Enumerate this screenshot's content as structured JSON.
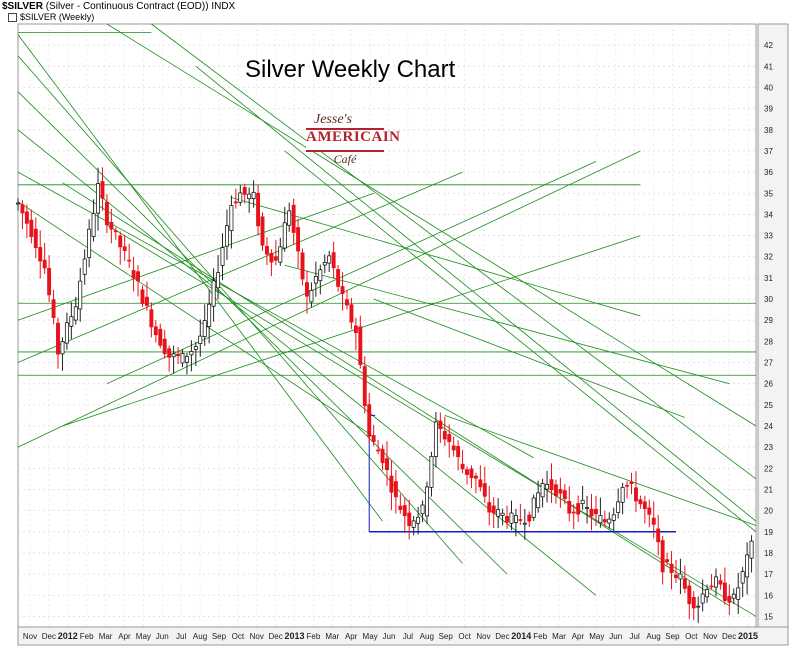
{
  "header": {
    "symbol": "$SILVER",
    "description": "(Silver - Continuous Contract (EOD))",
    "exchange": "INDX",
    "legend": "$SILVER (Weekly)"
  },
  "logo": {
    "script": "Jesse's",
    "main": "AMERICAIN",
    "sub": "Café"
  },
  "colors": {
    "up_candle_body": "#ffffff",
    "down_candle_body": "#e8121b",
    "up_candle_line": "#000000",
    "trendline": "#1a8c1a",
    "support_line": "#1020c8",
    "price_axis_bg": "#f3f3f3"
  },
  "chart_data": {
    "type": "candlestick",
    "title": "Silver Weekly Chart",
    "interval": "weekly",
    "ylim": [
      14.5,
      43
    ],
    "y_ticks": [
      15,
      16,
      17,
      18,
      19,
      20,
      21,
      22,
      23,
      24,
      25,
      26,
      27,
      28,
      29,
      30,
      31,
      32,
      33,
      34,
      35,
      36,
      37,
      38,
      39,
      40,
      41,
      42
    ],
    "x_tick_labels": [
      "Nov",
      "Dec",
      "2012",
      "Feb",
      "Mar",
      "Apr",
      "May",
      "Jun",
      "Jul",
      "Aug",
      "Sep",
      "Oct",
      "Nov",
      "Dec",
      "2013",
      "Feb",
      "Mar",
      "Apr",
      "May",
      "Jun",
      "Jul",
      "Aug",
      "Sep",
      "Oct",
      "Nov",
      "Dec",
      "2014",
      "Feb",
      "Mar",
      "Apr",
      "May",
      "Jun",
      "Jul",
      "Aug",
      "Sep",
      "Oct",
      "Nov",
      "Dec",
      "2015"
    ],
    "grid": true,
    "path_anchors": [
      [
        0,
        34.5
      ],
      [
        3,
        33.2
      ],
      [
        6,
        31.5
      ],
      [
        9,
        27.5
      ],
      [
        13,
        29.8
      ],
      [
        18,
        35.3
      ],
      [
        20,
        33.8
      ],
      [
        23,
        32.5
      ],
      [
        26,
        31.2
      ],
      [
        29,
        29.5
      ],
      [
        31,
        28.4
      ],
      [
        34,
        27.3
      ],
      [
        37,
        27.2
      ],
      [
        40,
        27.8
      ],
      [
        42,
        28.7
      ],
      [
        45,
        31.5
      ],
      [
        48,
        34.5
      ],
      [
        50,
        35.0
      ],
      [
        53,
        34.8
      ],
      [
        55,
        32.5
      ],
      [
        58,
        31.8
      ],
      [
        61,
        34.3
      ],
      [
        63,
        32.0
      ],
      [
        65,
        30.0
      ],
      [
        67,
        31.0
      ],
      [
        70,
        32.0
      ],
      [
        73,
        30.0
      ],
      [
        76,
        28.5
      ],
      [
        79,
        23.5
      ],
      [
        82,
        22.5
      ],
      [
        85,
        20.5
      ],
      [
        88,
        19.5
      ],
      [
        91,
        20.0
      ],
      [
        94,
        24.0
      ],
      [
        97,
        23.3
      ],
      [
        100,
        22.0
      ],
      [
        103,
        21.5
      ],
      [
        106,
        20.0
      ],
      [
        109,
        19.8
      ],
      [
        112,
        19.5
      ],
      [
        115,
        19.8
      ],
      [
        118,
        21.3
      ],
      [
        121,
        21.0
      ],
      [
        124,
        20.0
      ],
      [
        127,
        20.2
      ],
      [
        130,
        19.7
      ],
      [
        132,
        19.5
      ],
      [
        134,
        20.0
      ],
      [
        136,
        21.3
      ],
      [
        138,
        21.0
      ],
      [
        141,
        20.0
      ],
      [
        143,
        19.2
      ],
      [
        145,
        17.4
      ],
      [
        147,
        17.2
      ],
      [
        149,
        16.8
      ],
      [
        151,
        15.8
      ],
      [
        153,
        15.6
      ],
      [
        155,
        16.5
      ],
      [
        157,
        16.6
      ],
      [
        159,
        16.0
      ],
      [
        161,
        15.8
      ],
      [
        163,
        17.0
      ],
      [
        165,
        18.3
      ]
    ],
    "support_zone": {
      "top": 24.5,
      "level": 19.0,
      "from": "2013 Mar",
      "to": "2014 Aug"
    },
    "trendlines": [
      {
        "x0": 0,
        "y0": 42.5,
        "x1": 82,
        "y1": 19.5
      },
      {
        "x0": 0,
        "y0": 41.5,
        "x1": 100,
        "y1": 17.5
      },
      {
        "x0": 0,
        "y0": 39.8,
        "x1": 110,
        "y1": 17.0
      },
      {
        "x0": 0,
        "y0": 38.0,
        "x1": 130,
        "y1": 16.0
      },
      {
        "x0": 10,
        "y0": 35.5,
        "x1": 160,
        "y1": 15.5
      },
      {
        "x0": 20,
        "y0": 33.5,
        "x1": 166,
        "y1": 15.0
      },
      {
        "x0": 20,
        "y0": 43.0,
        "x1": 166,
        "y1": 24.0
      },
      {
        "x0": 30,
        "y0": 43.0,
        "x1": 166,
        "y1": 21.5
      },
      {
        "x0": 40,
        "y0": 41.0,
        "x1": 166,
        "y1": 19.5
      },
      {
        "x0": 60,
        "y0": 37.0,
        "x1": 166,
        "y1": 19.0
      },
      {
        "x0": 0,
        "y0": 36.0,
        "x1": 116,
        "y1": 22.5
      },
      {
        "x0": 0,
        "y0": 34.6,
        "x1": 80,
        "y1": 23.5
      },
      {
        "x0": 96,
        "y0": 24.5,
        "x1": 166,
        "y1": 19.3
      },
      {
        "x0": 80,
        "y0": 30.0,
        "x1": 150,
        "y1": 24.4
      },
      {
        "x0": 60,
        "y0": 31.6,
        "x1": 160,
        "y1": 26.0
      },
      {
        "x0": 48,
        "y0": 34.8,
        "x1": 140,
        "y1": 29.2
      },
      {
        "x0": 0,
        "y0": 23.0,
        "x1": 140,
        "y1": 37.0
      },
      {
        "x0": 10,
        "y0": 24.0,
        "x1": 140,
        "y1": 33.0
      },
      {
        "x0": 0,
        "y0": 29.0,
        "x1": 80,
        "y1": 35.0
      },
      {
        "x0": 0,
        "y0": 27.0,
        "x1": 100,
        "y1": 36.0
      },
      {
        "x0": 20,
        "y0": 26.0,
        "x1": 130,
        "y1": 36.5
      },
      {
        "x0": 0,
        "y0": 35.4,
        "x1": 140,
        "y1": 35.4
      },
      {
        "x0": 0,
        "y0": 26.4,
        "x1": 166,
        "y1": 26.4
      },
      {
        "x0": 0,
        "y0": 29.8,
        "x1": 166,
        "y1": 29.8
      },
      {
        "x0": 0,
        "y0": 42.6,
        "x1": 30,
        "y1": 42.6
      },
      {
        "x0": 0,
        "y0": 27.5,
        "x1": 166,
        "y1": 27.5
      }
    ]
  }
}
